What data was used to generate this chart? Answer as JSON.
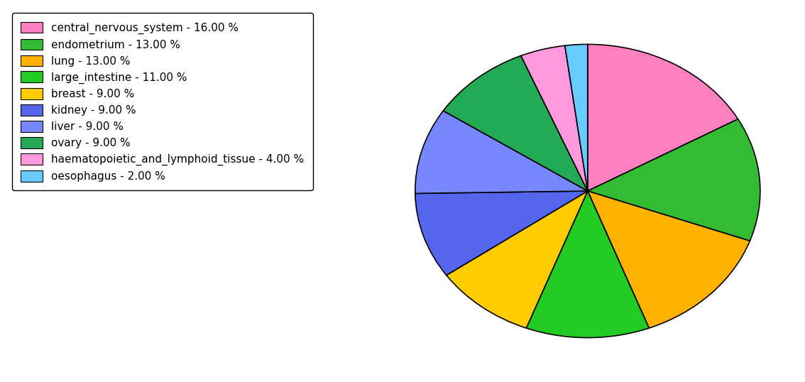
{
  "labels": [
    "central_nervous_system",
    "endometrium",
    "lung",
    "large_intestine",
    "breast",
    "kidney",
    "liver",
    "ovary",
    "haematopoietic_and_lymphoid_tissue",
    "oesophagus"
  ],
  "values": [
    16,
    13,
    13,
    11,
    9,
    9,
    9,
    9,
    4,
    2
  ],
  "colors": [
    "#FF80C0",
    "#33BB33",
    "#FFB300",
    "#22CC22",
    "#FFCC00",
    "#5566EE",
    "#7788FF",
    "#22AA55",
    "#FF99DD",
    "#66CCFF"
  ],
  "legend_labels": [
    "central_nervous_system - 16.00 %",
    "endometrium - 13.00 %",
    "lung - 13.00 %",
    "large_intestine - 11.00 %",
    "breast - 9.00 %",
    "kidney - 9.00 %",
    "liver - 9.00 %",
    "ovary - 9.00 %",
    "haematopoietic_and_lymphoid_tissue - 4.00 %",
    "oesophagus - 2.00 %"
  ],
  "startangle": 90,
  "figsize": [
    11.34,
    5.38
  ],
  "dpi": 100
}
